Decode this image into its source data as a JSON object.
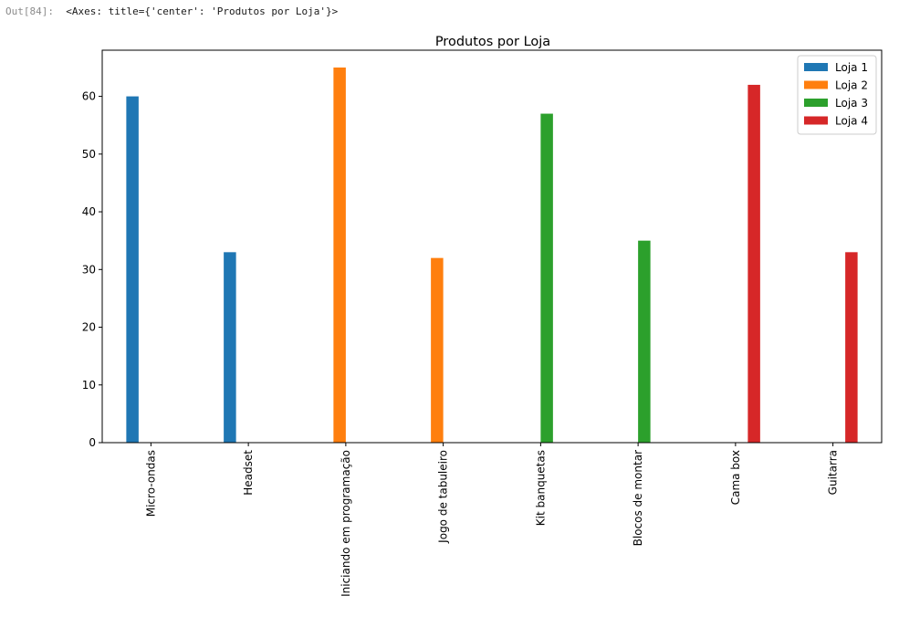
{
  "cell": {
    "prompt": "Out[84]:",
    "repr": "<Axes: title={'center': 'Produtos por Loja'}>"
  },
  "chart_data": {
    "type": "bar",
    "title": "Produtos por Loja",
    "xlabel": "",
    "ylabel": "",
    "ylim": [
      0,
      68
    ],
    "yticks": [
      0,
      10,
      20,
      30,
      40,
      50,
      60
    ],
    "grid": false,
    "legend_position": "top-right",
    "categories": [
      "Micro-ondas",
      "Headset",
      "Iniciando em programação",
      "Jogo de tabuleiro",
      "Kit banquetas",
      "Blocos de montar",
      "Cama box",
      "Guitarra"
    ],
    "series": [
      {
        "name": "Loja 1",
        "color": "#1f77b4",
        "values": [
          60,
          33,
          0,
          0,
          0,
          0,
          0,
          0
        ]
      },
      {
        "name": "Loja 2",
        "color": "#ff7f0e",
        "values": [
          0,
          0,
          65,
          32,
          0,
          0,
          0,
          0
        ]
      },
      {
        "name": "Loja 3",
        "color": "#2ca02c",
        "values": [
          0,
          0,
          0,
          0,
          57,
          35,
          0,
          0
        ]
      },
      {
        "name": "Loja 4",
        "color": "#d62728",
        "values": [
          0,
          0,
          0,
          0,
          0,
          0,
          62,
          33
        ]
      }
    ]
  }
}
